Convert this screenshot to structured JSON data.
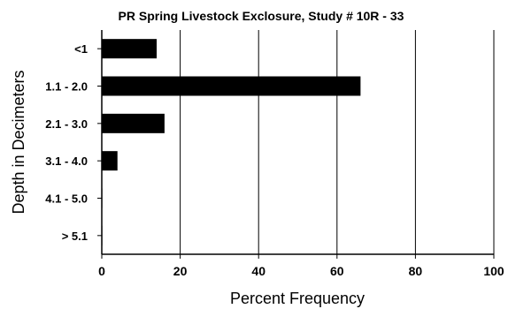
{
  "chart_data": {
    "type": "bar",
    "orientation": "horizontal",
    "title": "PR Spring Livestock Exclosure, Study # 10R - 33",
    "xlabel": "Percent Frequency",
    "ylabel": "Depth in Decimeters",
    "categories": [
      "<1",
      "1.1 - 2.0",
      "2.1 - 3.0",
      "3.1 - 4.0",
      "4.1 - 5.0",
      "> 5.1"
    ],
    "values": [
      14,
      66,
      16,
      4,
      0,
      0
    ],
    "xlim": [
      0,
      100
    ],
    "xticks": [
      0,
      20,
      40,
      60,
      80,
      100
    ],
    "grid": "vertical",
    "legend": "none",
    "bar_color": "#000000"
  }
}
